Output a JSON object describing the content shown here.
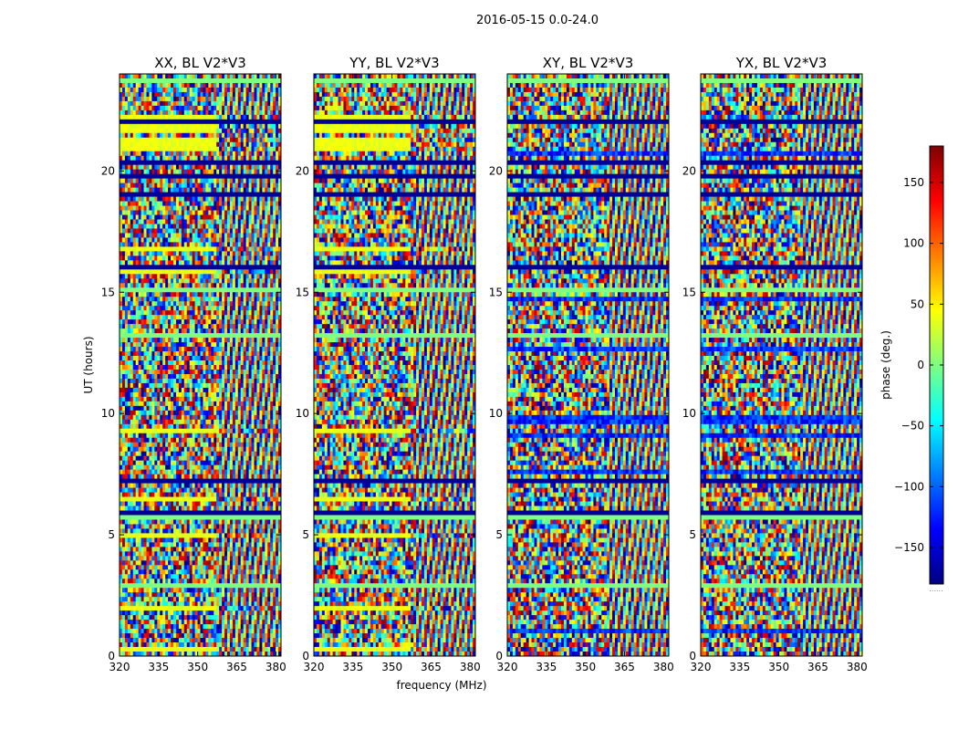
{
  "figure": {
    "suptitle": "2016-05-15 0.0-24.0"
  },
  "chart_data": {
    "type": "heatmap",
    "panels": [
      {
        "title": "XX, BL V2*V3",
        "pol": "XX"
      },
      {
        "title": "YY, BL V2*V3",
        "pol": "YY"
      },
      {
        "title": "XY, BL V2*V3",
        "pol": "XY"
      },
      {
        "title": "YX, BL V2*V3",
        "pol": "YX"
      }
    ],
    "xlabel": "frequency (MHz)",
    "ylabel": "UT (hours)",
    "xlim": [
      320,
      382
    ],
    "ylim": [
      0,
      24
    ],
    "xticks": [
      320,
      335,
      350,
      365,
      380
    ],
    "yticks": [
      0,
      5,
      10,
      15,
      20
    ],
    "colorbar": {
      "label": "phase (deg.)",
      "range": [
        -180,
        180
      ],
      "ticks": [
        150,
        100,
        50,
        0,
        -50,
        -100,
        -150
      ],
      "tick_labels": [
        "150",
        "100",
        "50",
        "0",
        "−50",
        "−100",
        "−150"
      ],
      "colormap": "jet",
      "footer": "......"
    }
  }
}
